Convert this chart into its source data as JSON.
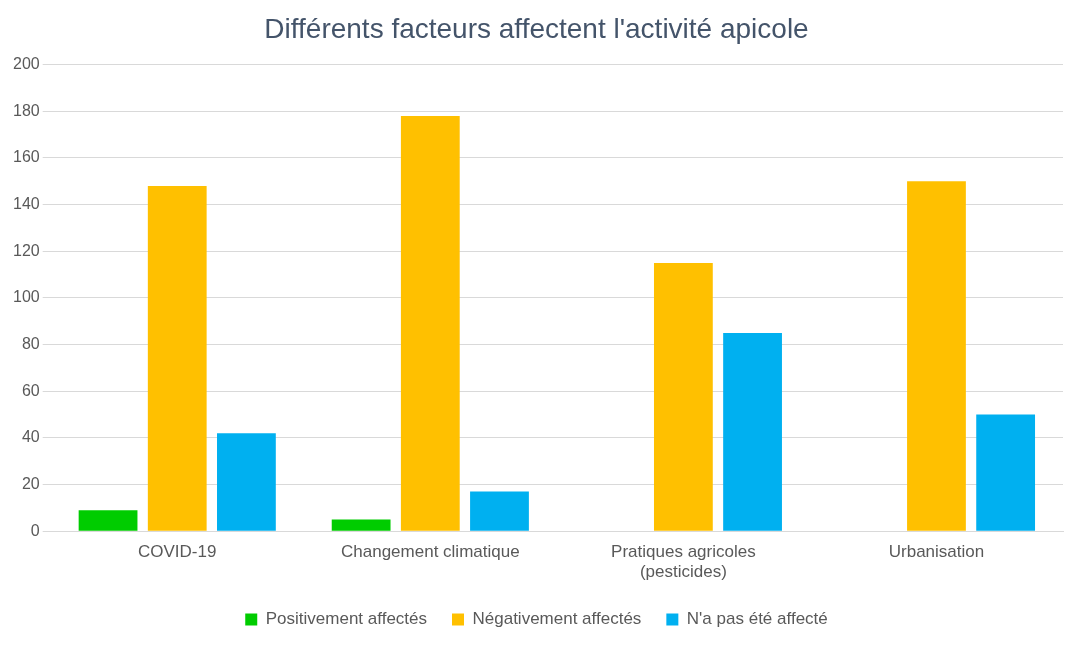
{
  "chart_data": {
    "type": "bar",
    "title": "Différents facteurs affectent l'activité apicole",
    "categories": [
      "COVID-19",
      "Changement climatique",
      "Pratiques agricoles (pesticides)",
      "Urbanisation"
    ],
    "series": [
      {
        "name": "Positivement affectés",
        "color": "#00cc00",
        "values": [
          9,
          5,
          0,
          0
        ]
      },
      {
        "name": "Négativement affectés",
        "color": "#ffc000",
        "values": [
          148,
          178,
          115,
          150
        ]
      },
      {
        "name": "N'a pas été affecté",
        "color": "#00b0f0",
        "values": [
          42,
          17,
          85,
          50
        ]
      }
    ],
    "ylim": [
      0,
      200
    ],
    "yticks": [
      0,
      20,
      40,
      60,
      80,
      100,
      120,
      140,
      160,
      180,
      200
    ],
    "grid": "y",
    "legend": "bottom"
  }
}
